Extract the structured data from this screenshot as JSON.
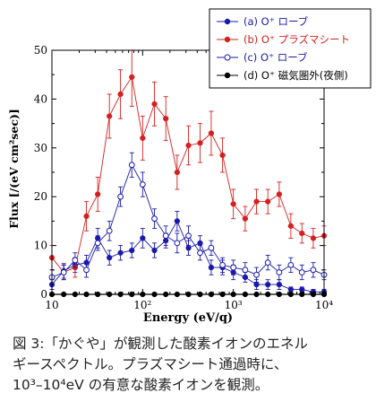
{
  "chart_data": {
    "type": "scatter",
    "xlabel": "Energy (eV/q)",
    "ylabel": "Flux [/(eV cm²sec)]",
    "x_scale": "log",
    "xlim": [
      10,
      10000
    ],
    "ylim": [
      0,
      50
    ],
    "x_ticks": [
      10,
      100,
      1000,
      10000
    ],
    "x_tick_labels": [
      "10",
      "10²",
      "10³",
      "10⁴"
    ],
    "y_ticks": [
      0,
      10,
      20,
      30,
      40,
      50
    ],
    "y_tick_labels": [
      "0",
      "10",
      "20",
      "30",
      "40",
      "50"
    ],
    "grid": false,
    "legend_position": "top-right",
    "series": [
      {
        "name": "(a) O⁺ ローブ",
        "color": "#1a1aaa",
        "marker": "filled",
        "x": [
          10,
          13.5,
          18,
          24,
          32,
          43,
          57,
          76,
          100,
          135,
          180,
          240,
          320,
          430,
          570,
          760,
          1000,
          1350,
          1800,
          2400,
          3200,
          4300,
          5700,
          7600,
          10000
        ],
        "y": [
          2,
          4.8,
          6,
          6.5,
          11.5,
          7.5,
          8.5,
          9,
          11.5,
          9,
          11,
          15,
          9.5,
          10.5,
          5.5,
          5.5,
          4.5,
          3.5,
          2,
          2,
          2,
          1,
          1,
          0.5,
          0.5
        ],
        "err": [
          1,
          1.5,
          1.5,
          1.5,
          2,
          1.5,
          1.5,
          1.5,
          2,
          1.5,
          1.5,
          2,
          1.5,
          1.5,
          1.5,
          1.5,
          1.5,
          1,
          1,
          1,
          1,
          0.5,
          0.5,
          0.5,
          0.5
        ]
      },
      {
        "name": "(b) O⁺ プラズマシート",
        "color": "#d42020",
        "marker": "filled",
        "x": [
          10,
          13.5,
          18,
          24,
          32,
          43,
          57,
          76,
          100,
          135,
          180,
          240,
          320,
          430,
          570,
          760,
          1000,
          1350,
          1800,
          2400,
          3200,
          4300,
          5700,
          7600,
          10000
        ],
        "y": [
          7.5,
          4.5,
          5.5,
          16,
          20.5,
          36.5,
          41,
          44.5,
          32,
          39,
          36,
          25,
          30.5,
          31,
          33,
          28.5,
          18.5,
          15.5,
          19,
          19,
          20.5,
          14,
          12.5,
          11.5,
          12
        ],
        "err": [
          2.5,
          1.5,
          2,
          3,
          3.5,
          4.5,
          5,
          6,
          4.5,
          4.5,
          4.5,
          3.5,
          4,
          4,
          4.5,
          3.5,
          3,
          2.5,
          2.5,
          2.5,
          2.5,
          2.5,
          2,
          2,
          2
        ]
      },
      {
        "name": "(c) O⁺ ローブ",
        "color": "#1a1aaa",
        "marker": "open",
        "x": [
          10,
          13.5,
          18,
          24,
          32,
          43,
          57,
          76,
          100,
          135,
          180,
          240,
          320,
          430,
          570,
          760,
          1000,
          1350,
          1800,
          2400,
          3200,
          4300,
          5700,
          7600,
          10000
        ],
        "y": [
          3.5,
          4.5,
          7,
          5,
          10.5,
          13,
          20,
          26.5,
          22.5,
          15.5,
          12,
          10.5,
          12,
          8.5,
          9.5,
          6,
          5.5,
          5,
          4,
          6.5,
          4.5,
          6,
          4.5,
          5,
          4
        ],
        "err": [
          1.5,
          1.5,
          1.5,
          1.5,
          1.5,
          2,
          2,
          2.5,
          2.5,
          2,
          2,
          2,
          2,
          1.5,
          1.5,
          1.5,
          1.5,
          1.5,
          1.5,
          1.5,
          1.5,
          1.5,
          1.5,
          1.5,
          1
        ]
      },
      {
        "name": "(d) O⁺ 磁気圏外(夜側)",
        "color": "#000000",
        "marker": "filled",
        "x": [
          10,
          13.5,
          18,
          24,
          32,
          43,
          57,
          76,
          100,
          135,
          180,
          240,
          320,
          430,
          570,
          760,
          1000,
          1350,
          1800,
          2400,
          3200,
          4300,
          5700,
          7600,
          10000
        ],
        "y": [
          0,
          0,
          0,
          0,
          0,
          0,
          0,
          0,
          0,
          0,
          0,
          0,
          0,
          0,
          0,
          0,
          0,
          0,
          0,
          0,
          0,
          0,
          0,
          0,
          0
        ],
        "err": []
      }
    ]
  },
  "caption": {
    "line1": "図 3:「かぐや」が観測した酸素イオンのエネル",
    "line2": "ギースペクトル。プラズマシート通過時に、",
    "line3": "10³–10⁴eV の有意な酸素イオンを観測。"
  }
}
